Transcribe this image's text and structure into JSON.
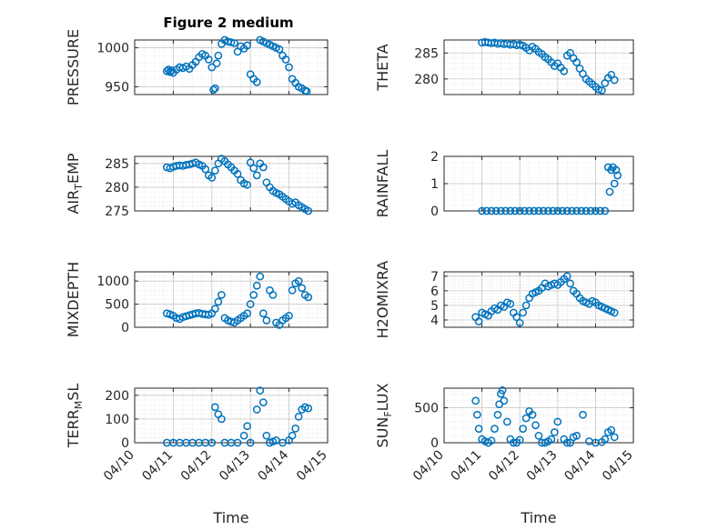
{
  "figure": {
    "title": "Figure 2 medium"
  },
  "colors": {
    "marker": "#0072BD",
    "axis": "#262626",
    "grid": "#d9d9d9"
  },
  "chart_data": [
    {
      "type": "scatter",
      "ylabel": "PRESSURE",
      "xlabel": "",
      "xlim": [
        "04/10",
        "04/15"
      ],
      "ylim": [
        940,
        1010
      ],
      "yticks": [
        950,
        1000
      ],
      "x": [
        "04/10 20:00",
        "04/10 21:00",
        "04/10 22:00",
        "04/10 23:00",
        "04/11 00:00",
        "04/11 02:00",
        "04/11 04:00",
        "04/11 06:00",
        "04/11 08:00",
        "04/11 10:00",
        "04/11 12:00",
        "04/11 14:00",
        "04/11 16:00",
        "04/11 18:00",
        "04/11 20:00",
        "04/11 22:00",
        "04/12 00:00",
        "04/12 01:00",
        "04/12 02:00",
        "04/12 03:00",
        "04/12 04:00",
        "04/12 06:00",
        "04/12 08:00",
        "04/12 10:00",
        "04/12 12:00",
        "04/12 14:00",
        "04/12 16:00",
        "04/12 18:00",
        "04/12 20:00",
        "04/12 22:00",
        "04/13 00:00",
        "04/13 02:00",
        "04/13 04:00",
        "04/13 06:00",
        "04/13 08:00",
        "04/13 10:00",
        "04/13 12:00",
        "04/13 14:00",
        "04/13 16:00",
        "04/13 18:00",
        "04/13 20:00",
        "04/13 22:00",
        "04/14 00:00",
        "04/14 02:00",
        "04/14 04:00",
        "04/14 06:00",
        "04/14 08:00",
        "04/14 10:00",
        "04/14 11:00"
      ],
      "y": [
        970,
        972,
        969,
        971,
        968,
        972,
        975,
        974,
        976,
        973,
        978,
        982,
        988,
        992,
        990,
        985,
        975,
        946,
        948,
        980,
        990,
        1005,
        1010,
        1008,
        1007,
        1006,
        995,
        1002,
        999,
        1003,
        966,
        960,
        956,
        1010,
        1008,
        1006,
        1004,
        1002,
        1000,
        998,
        990,
        985,
        975,
        960,
        955,
        950,
        948,
        945,
        944
      ]
    },
    {
      "type": "scatter",
      "ylabel": "THETA",
      "xlabel": "",
      "xlim": [
        "04/10",
        "04/15"
      ],
      "ylim": [
        277,
        287.5
      ],
      "yticks": [
        280,
        285
      ],
      "x": [
        "04/11 00:00",
        "04/11 02:00",
        "04/11 04:00",
        "04/11 06:00",
        "04/11 08:00",
        "04/11 10:00",
        "04/11 12:00",
        "04/11 14:00",
        "04/11 16:00",
        "04/11 18:00",
        "04/11 20:00",
        "04/11 22:00",
        "04/12 00:00",
        "04/12 02:00",
        "04/12 04:00",
        "04/12 06:00",
        "04/12 08:00",
        "04/12 10:00",
        "04/12 12:00",
        "04/12 14:00",
        "04/12 16:00",
        "04/12 18:00",
        "04/12 20:00",
        "04/12 22:00",
        "04/13 00:00",
        "04/13 02:00",
        "04/13 04:00",
        "04/13 06:00",
        "04/13 08:00",
        "04/13 10:00",
        "04/13 12:00",
        "04/13 14:00",
        "04/13 16:00",
        "04/13 18:00",
        "04/13 20:00",
        "04/13 22:00",
        "04/14 00:00",
        "04/14 02:00",
        "04/14 04:00",
        "04/14 06:00",
        "04/14 08:00",
        "04/14 10:00",
        "04/14 12:00"
      ],
      "y": [
        287.0,
        287.1,
        287.0,
        286.9,
        287.0,
        286.8,
        286.9,
        286.7,
        286.8,
        286.6,
        286.7,
        286.5,
        286.6,
        286.4,
        286.0,
        285.5,
        286.2,
        285.8,
        285.2,
        284.8,
        284.2,
        283.8,
        283.2,
        282.5,
        283.0,
        282.2,
        281.5,
        284.5,
        285.0,
        284.0,
        283.2,
        282.0,
        281.0,
        280.0,
        279.5,
        279.0,
        278.5,
        278.0,
        277.8,
        279.2,
        280.2,
        280.8,
        279.8
      ]
    },
    {
      "type": "scatter",
      "ylabel": "AIR_TEMP",
      "xlabel": "",
      "xlim": [
        "04/10",
        "04/15"
      ],
      "ylim": [
        275,
        286.5
      ],
      "yticks": [
        275,
        280,
        285
      ],
      "x": [
        "04/10 20:00",
        "04/10 22:00",
        "04/11 00:00",
        "04/11 02:00",
        "04/11 04:00",
        "04/11 06:00",
        "04/11 08:00",
        "04/11 10:00",
        "04/11 12:00",
        "04/11 14:00",
        "04/11 16:00",
        "04/11 18:00",
        "04/11 20:00",
        "04/11 22:00",
        "04/12 00:00",
        "04/12 02:00",
        "04/12 04:00",
        "04/12 06:00",
        "04/12 08:00",
        "04/12 10:00",
        "04/12 12:00",
        "04/12 14:00",
        "04/12 16:00",
        "04/12 18:00",
        "04/12 20:00",
        "04/12 22:00",
        "04/13 00:00",
        "04/13 02:00",
        "04/13 04:00",
        "04/13 06:00",
        "04/13 08:00",
        "04/13 10:00",
        "04/13 12:00",
        "04/13 14:00",
        "04/13 16:00",
        "04/13 18:00",
        "04/13 20:00",
        "04/13 22:00",
        "04/14 00:00",
        "04/14 02:00",
        "04/14 04:00",
        "04/14 06:00",
        "04/14 08:00",
        "04/14 10:00",
        "04/14 12:00"
      ],
      "y": [
        284.2,
        284.0,
        284.3,
        284.5,
        284.6,
        284.5,
        284.7,
        284.8,
        285.0,
        285.2,
        284.8,
        284.5,
        283.8,
        282.5,
        282.0,
        283.5,
        285.0,
        286.0,
        285.5,
        284.8,
        284.2,
        283.5,
        282.8,
        281.5,
        280.8,
        280.5,
        285.2,
        284.0,
        282.5,
        285.0,
        284.2,
        281.0,
        280.0,
        279.2,
        278.8,
        278.5,
        278.0,
        277.5,
        277.0,
        276.5,
        276.8,
        276.2,
        275.8,
        275.4,
        275.0
      ]
    },
    {
      "type": "scatter",
      "ylabel": "RAINFALL",
      "xlabel": "",
      "xlim": [
        "04/10",
        "04/15"
      ],
      "ylim": [
        0,
        2
      ],
      "yticks": [
        0,
        1,
        2
      ],
      "x": [
        "04/11 00:00",
        "04/11 03:00",
        "04/11 06:00",
        "04/11 09:00",
        "04/11 12:00",
        "04/11 15:00",
        "04/11 18:00",
        "04/11 21:00",
        "04/12 00:00",
        "04/12 03:00",
        "04/12 06:00",
        "04/12 09:00",
        "04/12 12:00",
        "04/12 15:00",
        "04/12 18:00",
        "04/12 21:00",
        "04/13 00:00",
        "04/13 03:00",
        "04/13 06:00",
        "04/13 09:00",
        "04/13 12:00",
        "04/13 15:00",
        "04/13 18:00",
        "04/13 21:00",
        "04/14 00:00",
        "04/14 03:00",
        "04/14 06:00",
        "04/14 08:00",
        "04/14 09:00",
        "04/14 10:00",
        "04/14 11:00",
        "04/14 12:00",
        "04/14 13:00",
        "04/14 14:00"
      ],
      "y": [
        0,
        0,
        0,
        0,
        0,
        0,
        0,
        0,
        0,
        0,
        0,
        0,
        0,
        0,
        0,
        0,
        0,
        0,
        0,
        0,
        0,
        0,
        0,
        0,
        0,
        0,
        0,
        1.6,
        0.7,
        1.5,
        1.6,
        1.0,
        1.5,
        1.3
      ]
    },
    {
      "type": "scatter",
      "ylabel": "MIXDEPTH",
      "xlabel": "",
      "xlim": [
        "04/10",
        "04/15"
      ],
      "ylim": [
        0,
        1200
      ],
      "yticks": [
        0,
        500,
        1000
      ],
      "x": [
        "04/10 20:00",
        "04/10 22:00",
        "04/11 00:00",
        "04/11 02:00",
        "04/11 04:00",
        "04/11 06:00",
        "04/11 08:00",
        "04/11 10:00",
        "04/11 12:00",
        "04/11 14:00",
        "04/11 16:00",
        "04/11 18:00",
        "04/11 20:00",
        "04/11 22:00",
        "04/12 00:00",
        "04/12 02:00",
        "04/12 04:00",
        "04/12 06:00",
        "04/12 08:00",
        "04/12 10:00",
        "04/12 12:00",
        "04/12 14:00",
        "04/12 16:00",
        "04/12 18:00",
        "04/12 20:00",
        "04/12 22:00",
        "04/13 00:00",
        "04/13 02:00",
        "04/13 04:00",
        "04/13 06:00",
        "04/13 08:00",
        "04/13 10:00",
        "04/13 12:00",
        "04/13 14:00",
        "04/13 16:00",
        "04/13 18:00",
        "04/13 20:00",
        "04/13 22:00",
        "04/14 00:00",
        "04/14 02:00",
        "04/14 04:00",
        "04/14 06:00",
        "04/14 08:00",
        "04/14 10:00",
        "04/14 12:00"
      ],
      "y": [
        300,
        280,
        250,
        200,
        180,
        220,
        240,
        260,
        280,
        300,
        310,
        290,
        280,
        270,
        300,
        400,
        550,
        700,
        200,
        150,
        120,
        100,
        150,
        200,
        250,
        300,
        500,
        700,
        900,
        1100,
        300,
        150,
        800,
        700,
        100,
        50,
        150,
        200,
        250,
        800,
        950,
        1000,
        850,
        700,
        650
      ]
    },
    {
      "type": "scatter",
      "ylabel": "H2OMIXRA",
      "xlabel": "",
      "xlim": [
        "04/10",
        "04/15"
      ],
      "ylim": [
        3.5,
        7.3
      ],
      "yticks": [
        4,
        5,
        6,
        7
      ],
      "x": [
        "04/10 20:00",
        "04/10 22:00",
        "04/11 00:00",
        "04/11 02:00",
        "04/11 04:00",
        "04/11 06:00",
        "04/11 08:00",
        "04/11 10:00",
        "04/11 12:00",
        "04/11 14:00",
        "04/11 16:00",
        "04/11 18:00",
        "04/11 20:00",
        "04/11 22:00",
        "04/12 00:00",
        "04/12 02:00",
        "04/12 04:00",
        "04/12 06:00",
        "04/12 08:00",
        "04/12 10:00",
        "04/12 12:00",
        "04/12 14:00",
        "04/12 16:00",
        "04/12 18:00",
        "04/12 20:00",
        "04/12 22:00",
        "04/13 00:00",
        "04/13 02:00",
        "04/13 04:00",
        "04/13 06:00",
        "04/13 08:00",
        "04/13 10:00",
        "04/13 12:00",
        "04/13 14:00",
        "04/13 16:00",
        "04/13 18:00",
        "04/13 20:00",
        "04/13 22:00",
        "04/14 00:00",
        "04/14 02:00",
        "04/14 04:00",
        "04/14 06:00",
        "04/14 08:00",
        "04/14 10:00",
        "04/14 12:00"
      ],
      "y": [
        4.2,
        3.9,
        4.5,
        4.4,
        4.3,
        4.6,
        4.8,
        4.7,
        5.0,
        4.9,
        5.2,
        5.1,
        4.5,
        4.2,
        3.8,
        4.5,
        5.0,
        5.5,
        5.8,
        5.9,
        6.0,
        6.2,
        6.5,
        6.3,
        6.4,
        6.5,
        6.4,
        6.6,
        6.8,
        7.0,
        6.5,
        6.0,
        5.8,
        5.5,
        5.3,
        5.2,
        5.1,
        5.3,
        5.2,
        5.0,
        4.9,
        4.8,
        4.7,
        4.6,
        4.5
      ]
    },
    {
      "type": "scatter",
      "ylabel": "TERR_MSL",
      "xlabel": "Time",
      "xlim": [
        "04/10",
        "04/15"
      ],
      "ylim": [
        0,
        230
      ],
      "yticks": [
        0,
        100,
        200
      ],
      "xticks": [
        "04/10",
        "04/11",
        "04/12",
        "04/13",
        "04/14",
        "04/15"
      ],
      "x": [
        "04/10 20:00",
        "04/11 00:00",
        "04/11 04:00",
        "04/11 08:00",
        "04/11 12:00",
        "04/11 16:00",
        "04/11 20:00",
        "04/12 00:00",
        "04/12 02:00",
        "04/12 04:00",
        "04/12 06:00",
        "04/12 08:00",
        "04/12 12:00",
        "04/12 16:00",
        "04/12 20:00",
        "04/12 22:00",
        "04/13 00:00",
        "04/13 04:00",
        "04/13 06:00",
        "04/13 08:00",
        "04/13 10:00",
        "04/13 12:00",
        "04/13 14:00",
        "04/13 16:00",
        "04/13 20:00",
        "04/14 00:00",
        "04/14 02:00",
        "04/14 04:00",
        "04/14 06:00",
        "04/14 08:00",
        "04/14 10:00",
        "04/14 12:00"
      ],
      "y": [
        0,
        0,
        0,
        0,
        0,
        0,
        0,
        0,
        150,
        120,
        100,
        0,
        0,
        0,
        30,
        70,
        0,
        140,
        220,
        170,
        30,
        0,
        5,
        10,
        0,
        10,
        30,
        60,
        110,
        140,
        150,
        145
      ]
    },
    {
      "type": "scatter",
      "ylabel": "SUN_FLUX",
      "xlabel": "Time",
      "xlim": [
        "04/10",
        "04/15"
      ],
      "ylim": [
        0,
        780
      ],
      "yticks": [
        0,
        500
      ],
      "xticks": [
        "04/10",
        "04/11",
        "04/12",
        "04/13",
        "04/14",
        "04/15"
      ],
      "x": [
        "04/10 20:00",
        "04/10 21:00",
        "04/10 22:00",
        "04/11 00:00",
        "04/11 02:00",
        "04/11 04:00",
        "04/11 06:00",
        "04/11 08:00",
        "04/11 10:00",
        "04/11 11:00",
        "04/11 12:00",
        "04/11 13:00",
        "04/11 14:00",
        "04/11 16:00",
        "04/11 18:00",
        "04/11 20:00",
        "04/11 22:00",
        "04/12 00:00",
        "04/12 02:00",
        "04/12 04:00",
        "04/12 06:00",
        "04/12 08:00",
        "04/12 10:00",
        "04/12 12:00",
        "04/12 14:00",
        "04/12 16:00",
        "04/12 18:00",
        "04/12 20:00",
        "04/12 22:00",
        "04/13 00:00",
        "04/13 04:00",
        "04/13 06:00",
        "04/13 08:00",
        "04/13 10:00",
        "04/13 12:00",
        "04/13 16:00",
        "04/13 20:00",
        "04/14 00:00",
        "04/14 04:00",
        "04/14 06:00",
        "04/14 08:00",
        "04/14 10:00",
        "04/14 12:00"
      ],
      "y": [
        600,
        400,
        200,
        50,
        20,
        0,
        30,
        200,
        400,
        550,
        700,
        750,
        600,
        300,
        50,
        0,
        0,
        40,
        200,
        350,
        450,
        400,
        250,
        100,
        0,
        0,
        20,
        50,
        150,
        300,
        50,
        0,
        0,
        80,
        100,
        400,
        20,
        0,
        10,
        50,
        150,
        180,
        80
      ]
    }
  ]
}
